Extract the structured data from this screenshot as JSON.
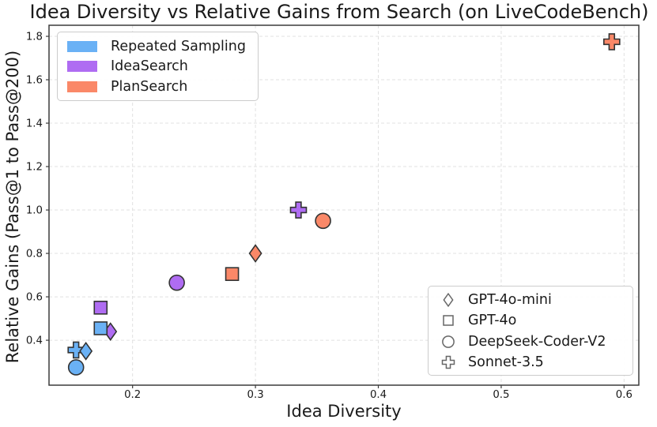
{
  "chart_data": {
    "type": "scatter",
    "title": "Idea Diversity vs Relative Gains from Search (on LiveCodeBench)",
    "xlabel": "Idea Diversity",
    "ylabel": "Relative Gains (Pass@1 to Pass@200)",
    "xlim": [
      0.132,
      0.612
    ],
    "ylim": [
      0.193,
      1.851
    ],
    "xticks": [
      0.2,
      0.3,
      0.4,
      0.5,
      0.6
    ],
    "yticks": [
      0.4,
      0.6,
      0.8,
      1.0,
      1.2,
      1.4,
      1.6,
      1.8
    ],
    "grid": true,
    "legend_methods_position": "upper-left",
    "legend_models_position": "lower-right",
    "series": [
      {
        "name": "Repeated Sampling",
        "color": "#6AB1F5",
        "points": [
          {
            "model": "GPT-4o-mini",
            "marker": "diamond",
            "x": 0.162,
            "y": 0.35
          },
          {
            "model": "GPT-4o",
            "marker": "square",
            "x": 0.174,
            "y": 0.455
          },
          {
            "model": "DeepSeek-Coder-V2",
            "marker": "circle",
            "x": 0.154,
            "y": 0.275
          },
          {
            "model": "Sonnet-3.5",
            "marker": "plus",
            "x": 0.154,
            "y": 0.355
          }
        ]
      },
      {
        "name": "IdeaSearch",
        "color": "#AF6CF2",
        "points": [
          {
            "model": "GPT-4o-mini",
            "marker": "diamond",
            "x": 0.182,
            "y": 0.44
          },
          {
            "model": "GPT-4o",
            "marker": "square",
            "x": 0.174,
            "y": 0.55
          },
          {
            "model": "DeepSeek-Coder-V2",
            "marker": "circle",
            "x": 0.236,
            "y": 0.665
          },
          {
            "model": "Sonnet-3.5",
            "marker": "plus",
            "x": 0.335,
            "y": 1.0
          }
        ]
      },
      {
        "name": "PlanSearch",
        "color": "#FA8868",
        "points": [
          {
            "model": "GPT-4o-mini",
            "marker": "diamond",
            "x": 0.3,
            "y": 0.8
          },
          {
            "model": "GPT-4o",
            "marker": "square",
            "x": 0.281,
            "y": 0.705
          },
          {
            "model": "DeepSeek-Coder-V2",
            "marker": "circle",
            "x": 0.355,
            "y": 0.95
          },
          {
            "model": "Sonnet-3.5",
            "marker": "plus",
            "x": 0.59,
            "y": 1.775
          }
        ]
      }
    ],
    "marker_legend": [
      {
        "label": "GPT-4o-mini",
        "marker": "diamond"
      },
      {
        "label": "GPT-4o",
        "marker": "square"
      },
      {
        "label": "DeepSeek-Coder-V2",
        "marker": "circle"
      },
      {
        "label": "Sonnet-3.5",
        "marker": "plus"
      }
    ]
  },
  "style": {
    "marker_edge_color": "#333333",
    "legend_marker_edge_color": "#666666",
    "grid_color": "#e1e1e1",
    "spine_color": "#3c3c3c",
    "tick_color": "#3c3c3c",
    "text_color": "#1a1a1a",
    "background_color": "#ffffff"
  }
}
